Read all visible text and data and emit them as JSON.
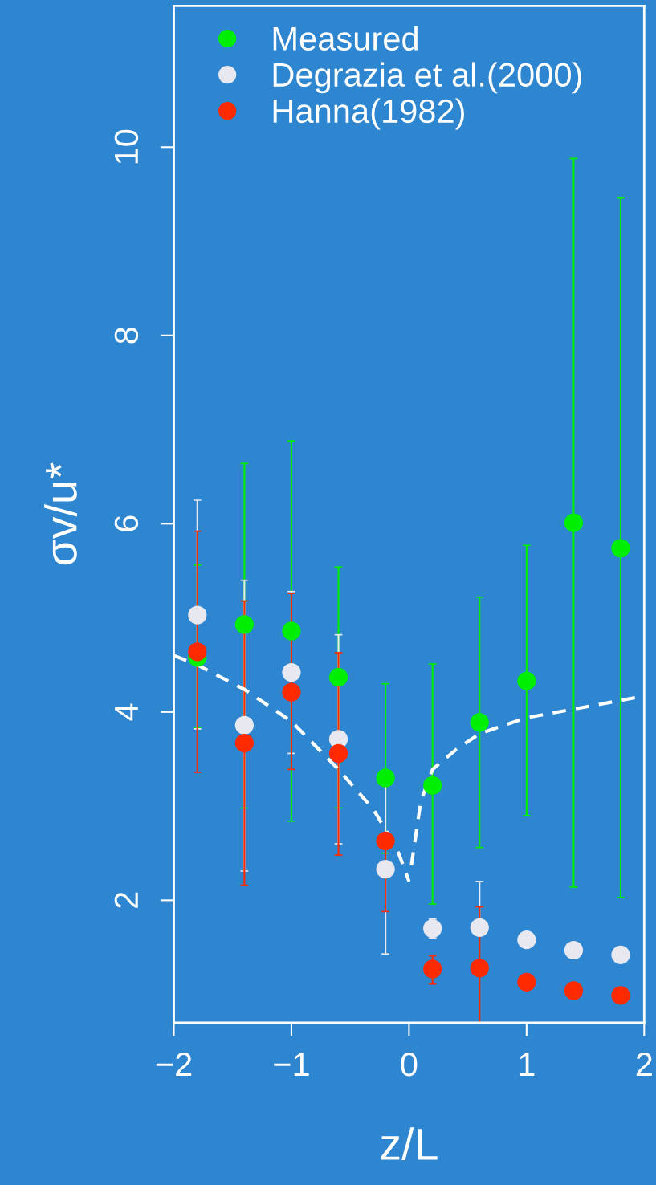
{
  "chart_data": {
    "type": "scatter",
    "xlabel": "z/L",
    "ylabel": "σv/u*",
    "x": [
      -1.8,
      -1.4,
      -1.0,
      -0.6,
      -0.2,
      0.2,
      0.6,
      1.0,
      1.4,
      1.8
    ],
    "series": [
      {
        "name": "Measured",
        "color": "#00ee00",
        "values": [
          4.58,
          4.93,
          4.86,
          4.37,
          3.3,
          3.22,
          3.89,
          4.33,
          6.01,
          5.74
        ],
        "errors": [
          [
            3.83,
            5.56
          ],
          [
            2.98,
            6.64
          ],
          [
            2.84,
            6.88
          ],
          [
            2.98,
            5.54
          ],
          [
            2.5,
            4.3
          ],
          [
            1.96,
            4.51
          ],
          [
            2.56,
            5.22
          ],
          [
            2.9,
            5.77
          ],
          [
            2.14,
            9.88
          ],
          [
            2.03,
            9.46
          ]
        ]
      },
      {
        "name": "Degrazia et al.(2000)",
        "color": "#e8e8f0",
        "values": [
          5.03,
          3.86,
          4.42,
          3.71,
          2.33,
          1.7,
          1.71,
          1.58,
          1.47,
          1.42
        ],
        "errors": [
          [
            3.82,
            6.25
          ],
          [
            2.31,
            5.4
          ],
          [
            3.56,
            5.28
          ],
          [
            2.6,
            4.82
          ],
          [
            1.43,
            3.23
          ],
          [
            1.6,
            1.8
          ],
          [
            1.71,
            2.2
          ],
          null,
          null,
          null
        ]
      },
      {
        "name": "Hanna(1982)",
        "color": "#ff2a00",
        "values": [
          4.64,
          3.67,
          4.21,
          3.56,
          2.63,
          1.27,
          1.28,
          1.13,
          1.04,
          0.99
        ],
        "errors": [
          [
            3.36,
            5.92
          ],
          [
            2.16,
            5.18
          ],
          [
            3.39,
            5.26
          ],
          [
            2.48,
            4.63
          ],
          [
            1.88,
            2.63
          ],
          [
            1.11,
            1.41
          ],
          [
            0.7,
            1.93
          ],
          null,
          null,
          null
        ]
      },
      {
        "type": "line",
        "marker": "none",
        "color": "#ffffff",
        "line_style": "dashed",
        "x": [
          -2.0,
          -1.8,
          -1.4,
          -1.0,
          -0.6,
          -0.3,
          -0.1,
          0.0,
          null,
          0.02,
          0.1,
          0.2,
          0.4,
          0.6,
          1.0,
          1.4,
          2.0
        ],
        "values": [
          4.6,
          4.5,
          4.24,
          3.9,
          3.39,
          2.96,
          2.54,
          2.2,
          null,
          2.37,
          3.05,
          3.39,
          3.6,
          3.77,
          3.94,
          4.03,
          4.17
        ]
      }
    ],
    "xlim": [
      -2,
      2
    ],
    "xticks": [
      {
        "value": -2,
        "label": "−2"
      },
      {
        "value": -1,
        "label": "−1"
      },
      0,
      1,
      2
    ],
    "ylim": [
      0.7,
      11.5
    ],
    "yticks": [
      2,
      4,
      6,
      8,
      10
    ],
    "marker": "circle",
    "legend": "top left",
    "grid": false
  }
}
